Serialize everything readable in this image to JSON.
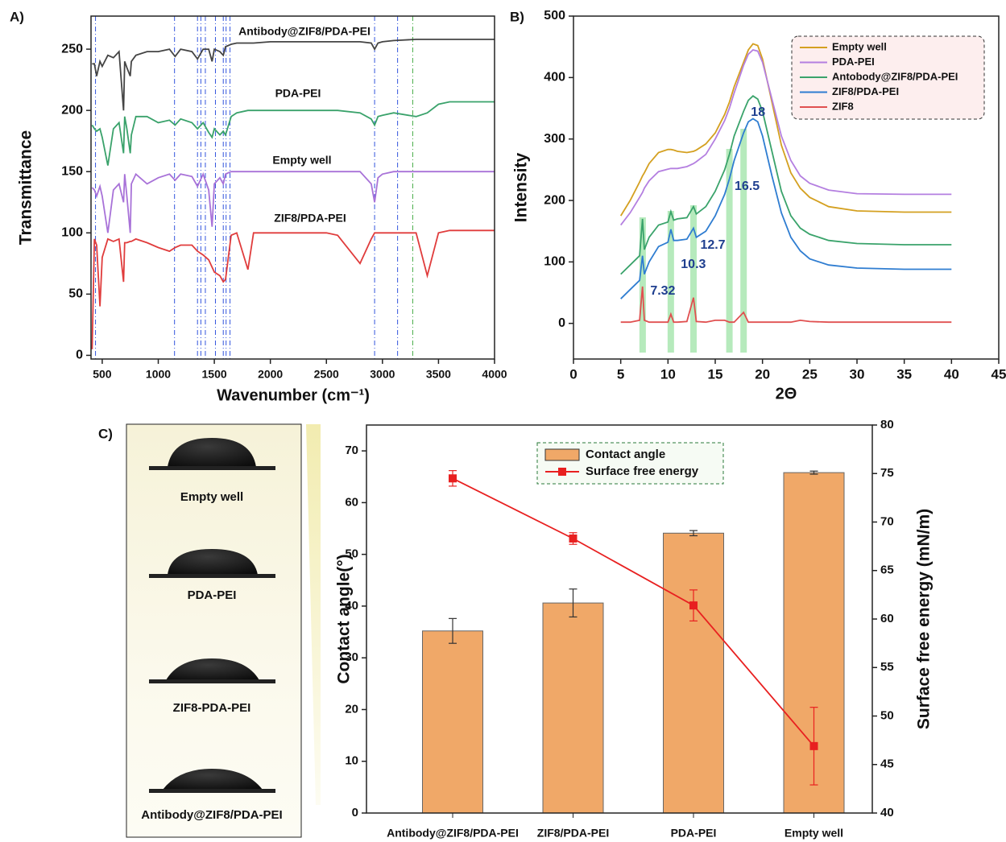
{
  "chart_data": [
    {
      "type": "line",
      "label": "A)",
      "xlabel": "Wavenumber (cm⁻¹)",
      "ylabel": "Transmittance",
      "xlim": [
        400,
        4000
      ],
      "ylim": [
        -3,
        277
      ],
      "xticks": [
        500,
        1000,
        1500,
        2000,
        2500,
        3000,
        3500,
        4000
      ],
      "yticks": [
        0,
        50,
        100,
        150,
        200,
        250
      ],
      "reference_lines": [
        {
          "x": 440,
          "color": "#3355dd"
        },
        {
          "x": 1145,
          "color": "#3355dd"
        },
        {
          "x": 1350,
          "color": "#3355dd"
        },
        {
          "x": 1380,
          "color": "#3355dd"
        },
        {
          "x": 1420,
          "color": "#3355dd"
        },
        {
          "x": 1510,
          "color": "#3355dd"
        },
        {
          "x": 1580,
          "color": "#3355dd"
        },
        {
          "x": 1605,
          "color": "#3355dd"
        },
        {
          "x": 1640,
          "color": "#3355dd"
        },
        {
          "x": 2930,
          "color": "#3355dd"
        },
        {
          "x": 3135,
          "color": "#3355dd"
        },
        {
          "x": 3270,
          "color": "#44aa44"
        }
      ],
      "x": [
        410,
        430,
        450,
        480,
        500,
        550,
        600,
        650,
        690,
        700,
        720,
        750,
        760,
        800,
        900,
        1000,
        1100,
        1150,
        1200,
        1300,
        1350,
        1400,
        1450,
        1480,
        1500,
        1550,
        1580,
        1600,
        1650,
        1700,
        1800,
        1850,
        2000,
        2500,
        2600,
        2800,
        2900,
        2930,
        2960,
        3000,
        3100,
        3300,
        3400,
        3500,
        3600,
        4000
      ],
      "series": [
        {
          "name": "Antibody@ZIF8/PDA-PEI",
          "color": "#444444",
          "values": [
            238,
            238,
            228,
            240,
            236,
            245,
            243,
            248,
            200,
            240,
            235,
            228,
            240,
            245,
            248,
            248,
            250,
            244,
            250,
            248,
            242,
            250,
            250,
            240,
            250,
            248,
            245,
            252,
            254,
            255,
            255,
            255,
            256,
            256,
            256,
            256,
            255,
            250,
            255,
            256,
            257,
            258,
            258,
            258,
            258,
            258
          ]
        },
        {
          "name": "PDA-PEI",
          "color": "#3aa26b",
          "values": [
            188,
            185,
            183,
            185,
            178,
            155,
            185,
            190,
            165,
            195,
            185,
            165,
            180,
            195,
            195,
            190,
            192,
            188,
            193,
            190,
            185,
            190,
            182,
            178,
            185,
            180,
            183,
            180,
            195,
            198,
            200,
            200,
            200,
            200,
            200,
            198,
            193,
            188,
            195,
            196,
            198,
            195,
            198,
            205,
            207,
            207
          ]
        },
        {
          "name": "Empty well",
          "color": "#a872d8",
          "values": [
            137,
            135,
            130,
            138,
            130,
            100,
            135,
            140,
            125,
            148,
            130,
            100,
            140,
            148,
            140,
            145,
            148,
            143,
            148,
            146,
            138,
            148,
            135,
            105,
            140,
            145,
            140,
            148,
            150,
            150,
            150,
            150,
            150,
            150,
            150,
            150,
            140,
            125,
            145,
            148,
            150,
            150,
            150,
            150,
            150,
            150
          ]
        },
        {
          "name": "ZIF8/PDA-PEI",
          "color": "#e03c3c",
          "values": [
            5,
            95,
            90,
            40,
            80,
            95,
            93,
            95,
            60,
            92,
            92,
            93,
            93,
            95,
            92,
            88,
            85,
            88,
            90,
            90,
            85,
            82,
            78,
            72,
            68,
            65,
            60,
            62,
            98,
            100,
            70,
            100,
            100,
            100,
            98,
            75,
            95,
            100,
            100,
            100,
            100,
            100,
            65,
            100,
            102,
            102
          ]
        }
      ]
    },
    {
      "type": "line",
      "label": "B)",
      "xlabel": "2Θ",
      "ylabel": "Intensity",
      "xlim": [
        0,
        45
      ],
      "ylim": [
        -58,
        500
      ],
      "xticks": [
        0,
        5,
        10,
        15,
        20,
        25,
        30,
        35,
        40,
        45
      ],
      "yticks": [
        0,
        100,
        200,
        300,
        400,
        500
      ],
      "peaks": [
        7.32,
        10.3,
        12.7,
        16.5,
        18
      ],
      "legend": "upper right",
      "x": [
        5,
        6,
        7,
        7.3,
        7.5,
        8,
        9,
        10,
        10.3,
        10.6,
        11,
        12,
        12.7,
        13,
        14,
        15,
        16,
        16.5,
        17,
        18,
        18.5,
        19,
        19.5,
        20,
        21,
        22,
        23,
        24,
        25,
        27,
        30,
        35,
        40
      ],
      "series": [
        {
          "name": "Empty well",
          "color": "#d4a020",
          "values": [
            175,
            200,
            230,
            240,
            245,
            260,
            278,
            283,
            283,
            282,
            280,
            278,
            280,
            282,
            292,
            310,
            340,
            360,
            385,
            425,
            445,
            455,
            452,
            430,
            360,
            290,
            245,
            220,
            205,
            190,
            183,
            181,
            181
          ]
        },
        {
          "name": "PDA-PEI",
          "color": "#b47fe0",
          "values": [
            160,
            180,
            205,
            213,
            220,
            232,
            247,
            251,
            252,
            252,
            252,
            255,
            260,
            263,
            275,
            300,
            330,
            350,
            375,
            420,
            438,
            445,
            443,
            425,
            365,
            305,
            265,
            240,
            228,
            217,
            211,
            210,
            210
          ]
        },
        {
          "name": "Antobody@ZIF8/PDA-PEI",
          "color": "#3aa36b",
          "values": [
            80,
            95,
            110,
            170,
            120,
            140,
            160,
            165,
            182,
            168,
            170,
            172,
            190,
            178,
            190,
            215,
            250,
            275,
            305,
            345,
            363,
            370,
            365,
            345,
            280,
            215,
            175,
            155,
            145,
            135,
            130,
            128,
            128
          ]
        },
        {
          "name": "ZIF8/PDA-PEI",
          "color": "#2f7dd1",
          "values": [
            40,
            55,
            70,
            110,
            80,
            100,
            125,
            132,
            153,
            135,
            135,
            137,
            155,
            140,
            150,
            175,
            210,
            235,
            265,
            310,
            328,
            333,
            328,
            305,
            240,
            180,
            140,
            118,
            105,
            95,
            90,
            88,
            88
          ]
        },
        {
          "name": "ZIF8",
          "color": "#e05050",
          "values": [
            2,
            2,
            5,
            60,
            5,
            2,
            2,
            2,
            15,
            2,
            2,
            3,
            42,
            3,
            2,
            5,
            5,
            2,
            2,
            18,
            2,
            2,
            2,
            2,
            2,
            2,
            2,
            5,
            3,
            2,
            2,
            2,
            2
          ]
        }
      ]
    },
    {
      "type": "bar",
      "label": "C)",
      "ylabel": "Contact angle(°)",
      "y2label": "Surface free energy (mN/m)",
      "photo_labels": [
        "Empty well",
        "PDA-PEI",
        "ZIF8-PDA-PEI",
        "Antibody@ZIF8/PDA-PEI"
      ],
      "categories": [
        "Antibody@ZIF8/PDA-PEI",
        "ZIF8/PDA-PEI",
        "PDA-PEI",
        "Empty well"
      ],
      "ylim": [
        0,
        75
      ],
      "yticks": [
        0,
        10,
        20,
        30,
        40,
        50,
        60,
        70
      ],
      "y2lim": [
        40,
        80
      ],
      "y2ticks": [
        40,
        45,
        50,
        55,
        60,
        65,
        70,
        75,
        80
      ],
      "legend": "upper center",
      "series": [
        {
          "name": "Contact angle",
          "color": "#f0a868",
          "values": [
            35.2,
            40.6,
            54.1,
            65.8
          ],
          "errors": [
            2.4,
            2.7,
            0.5,
            0.3
          ]
        },
        {
          "name": "Surface free energy",
          "color": "#e82020",
          "axis": "y2",
          "values": [
            74.5,
            68.3,
            61.4,
            46.9
          ],
          "errors": [
            0.8,
            0.6,
            1.6,
            4.0
          ]
        }
      ]
    }
  ]
}
